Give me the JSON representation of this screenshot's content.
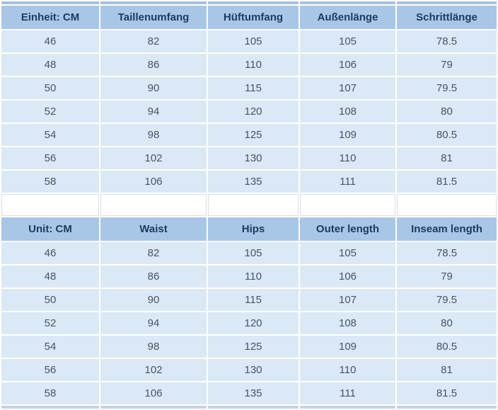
{
  "chart_data": [
    {
      "type": "table",
      "language": "German",
      "headers": [
        "Einheit: CM",
        "Taillenumfang",
        "Hüftumfang",
        "Außenlänge",
        "Schrittlänge"
      ],
      "rows": [
        [
          "46",
          "82",
          "105",
          "105",
          "78.5"
        ],
        [
          "48",
          "86",
          "110",
          "106",
          "79"
        ],
        [
          "50",
          "90",
          "115",
          "107",
          "79.5"
        ],
        [
          "52",
          "94",
          "120",
          "108",
          "80"
        ],
        [
          "54",
          "98",
          "125",
          "109",
          "80.5"
        ],
        [
          "56",
          "102",
          "130",
          "110",
          "81"
        ],
        [
          "58",
          "106",
          "135",
          "111",
          "81.5"
        ]
      ]
    },
    {
      "type": "table",
      "language": "English",
      "headers": [
        "Unit: CM",
        "Waist",
        "Hips",
        "Outer length",
        "Inseam length"
      ],
      "rows": [
        [
          "46",
          "82",
          "105",
          "105",
          "78.5"
        ],
        [
          "48",
          "86",
          "110",
          "106",
          "79"
        ],
        [
          "50",
          "90",
          "115",
          "107",
          "79.5"
        ],
        [
          "52",
          "94",
          "120",
          "108",
          "80"
        ],
        [
          "54",
          "98",
          "125",
          "109",
          "80.5"
        ],
        [
          "56",
          "102",
          "130",
          "110",
          "81"
        ],
        [
          "58",
          "106",
          "135",
          "111",
          "81.5"
        ]
      ]
    }
  ],
  "colors": {
    "header_bg": "#a8c7e7",
    "header_text": "#1e3a5f",
    "row_bg": "#dbe8f5",
    "row_text": "#44546a",
    "gap": "#ffffff"
  }
}
